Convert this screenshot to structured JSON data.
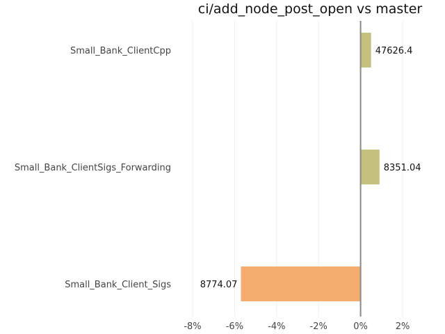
{
  "chart_data": {
    "type": "bar",
    "orientation": "horizontal",
    "title": "ci/add_node_post_open vs master",
    "xlabel": "",
    "ylabel": "",
    "categories": [
      "Small_Bank_ClientCpp",
      "Small_Bank_ClientSigs_Forwarding",
      "Small_Bank_Client_Sigs"
    ],
    "values": [
      0.5,
      0.9,
      -5.7
    ],
    "value_unit": "%",
    "data_labels": [
      "47626.4",
      "8351.04",
      "8774.07"
    ],
    "bar_colors": [
      "#c5c07c",
      "#c5c07c",
      "#f5ad6f"
    ],
    "xlim": [
      -8,
      2
    ],
    "xticks": [
      -8,
      -6,
      -4,
      -2,
      0,
      2
    ],
    "xtick_labels": [
      "-8%",
      "-6%",
      "-4%",
      "-2%",
      "0%",
      "2%"
    ],
    "grid": true,
    "legend": "none"
  }
}
